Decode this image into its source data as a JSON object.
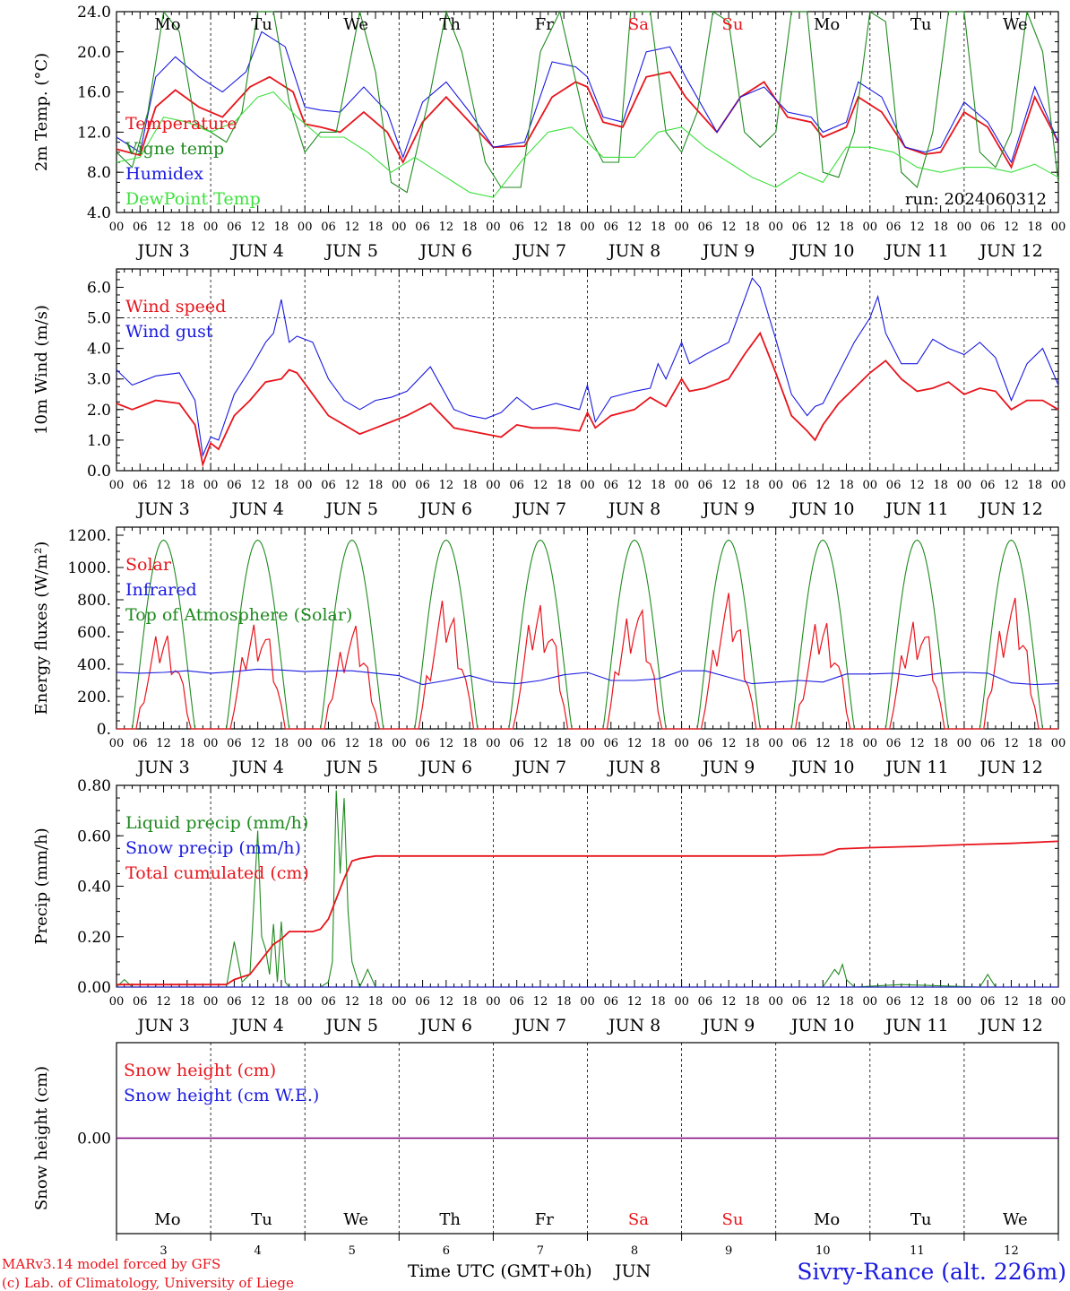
{
  "colors": {
    "red": "#e8141c",
    "green": "#1f8a1f",
    "blue": "#1a1ae0",
    "lightgreen": "#3de03d",
    "purple": "#800080",
    "black": "#000000"
  },
  "day_names": [
    "Mo",
    "Tu",
    "We",
    "Th",
    "Fr",
    "Sa",
    "Su",
    "Mo",
    "Tu",
    "We"
  ],
  "weekend_index": [
    5,
    6
  ],
  "date_labels": [
    "JUN  3",
    "JUN  4",
    "JUN  5",
    "JUN  6",
    "JUN  7",
    "JUN  8",
    "JUN  9",
    "JUN 10",
    "JUN 11",
    "JUN 12"
  ],
  "day_numbers": [
    "3",
    "4",
    "5",
    "6",
    "7",
    "8",
    "9",
    "10",
    "11",
    "12"
  ],
  "hour_labels": [
    "00",
    "06",
    "12",
    "18"
  ],
  "final_hour_label": "00",
  "run_label": "run: 2024060312",
  "footer": {
    "model": "MARv3.14 model forced by GFS",
    "copyright": "(c) Lab. of Climatology, University of Liege",
    "xlabel": "Time UTC (GMT+0h)",
    "month": "JUN",
    "station": "Sivry-Rance (alt. 226m)"
  },
  "chart_data": [
    {
      "type": "line",
      "ylabel": "2m Temp. (°C)",
      "ylim": [
        4,
        24
      ],
      "yticks": [
        4,
        8,
        12,
        16,
        20,
        24
      ],
      "ytick_labels": [
        "4.0",
        "8.0",
        "12.0",
        "16.0",
        "20.0",
        "24.0"
      ],
      "x_unit": "hours since 2024-06-03 00 UTC",
      "legend": [
        "Temperature",
        "Vigne temp",
        "Humidex",
        "DewPoint Temp"
      ],
      "series": [
        {
          "name": "Temperature",
          "color": "red",
          "x": [
            0,
            6,
            10,
            15,
            21,
            27,
            34,
            39,
            45,
            48,
            52,
            57,
            63,
            69,
            73,
            78,
            84,
            90,
            96,
            104,
            111,
            117,
            120,
            124,
            129,
            135,
            141,
            145,
            153,
            159,
            165,
            171,
            177,
            180,
            186,
            189,
            195,
            201,
            206,
            210,
            216,
            222,
            228,
            234,
            240
          ],
          "y": [
            10.3,
            9.7,
            14.5,
            16.2,
            14.5,
            13.5,
            16.5,
            17.5,
            16.0,
            12.8,
            12.5,
            12.0,
            14.0,
            12.0,
            9.0,
            13.0,
            15.5,
            13.0,
            10.5,
            10.6,
            15.5,
            17.0,
            16.5,
            13.0,
            12.5,
            17.5,
            18.0,
            15.5,
            12.0,
            15.5,
            17.0,
            13.5,
            13.0,
            11.5,
            12.5,
            15.5,
            14.0,
            10.5,
            9.8,
            10.0,
            14.0,
            12.5,
            8.5,
            15.5,
            11.0
          ]
        },
        {
          "name": "Humidex",
          "color": "blue",
          "x": [
            0,
            6,
            10,
            15,
            21,
            27,
            33,
            37,
            43,
            48,
            52,
            57,
            63,
            69,
            73,
            78,
            84,
            90,
            96,
            104,
            111,
            117,
            120,
            124,
            129,
            135,
            141,
            145,
            153,
            159,
            165,
            171,
            177,
            180,
            186,
            189,
            195,
            201,
            206,
            210,
            216,
            222,
            228,
            234,
            240
          ],
          "y": [
            11.5,
            10.0,
            17.5,
            19.5,
            17.5,
            16.0,
            18.0,
            22.0,
            20.5,
            14.5,
            14.2,
            14.0,
            16.5,
            14.0,
            9.5,
            15.0,
            17.0,
            14.0,
            10.5,
            11.0,
            19.0,
            18.5,
            17.5,
            13.5,
            13.0,
            20.0,
            20.5,
            17.5,
            12.0,
            15.5,
            16.5,
            14.0,
            13.5,
            12.0,
            13.0,
            17.0,
            15.5,
            10.5,
            10.0,
            10.5,
            15.0,
            13.0,
            9.0,
            16.5,
            11.0
          ]
        },
        {
          "name": "Vigne temp",
          "color": "green",
          "x": [
            0,
            4,
            8,
            12,
            16,
            20,
            24,
            28,
            32,
            36,
            40,
            44,
            48,
            52,
            56,
            62,
            66,
            70,
            74,
            80,
            84,
            88,
            94,
            98,
            103,
            108,
            113,
            120,
            124,
            128,
            131,
            136,
            140,
            144,
            148,
            152,
            156,
            160,
            164,
            168,
            172,
            176,
            180,
            184,
            188,
            192,
            196,
            200,
            204,
            208,
            212,
            216,
            220,
            224,
            228,
            232,
            236,
            240
          ],
          "y": [
            10.0,
            8.5,
            14.0,
            24.0,
            22.0,
            13.0,
            12.0,
            11.0,
            14.0,
            24.0,
            24.0,
            15.0,
            10.0,
            12.0,
            12.0,
            24.0,
            18.0,
            7.0,
            6.0,
            16.0,
            24.0,
            20.0,
            9.0,
            6.5,
            6.5,
            20.0,
            24.0,
            12.0,
            9.0,
            9.0,
            24.0,
            24.0,
            12.0,
            10.0,
            14.0,
            24.0,
            23.0,
            12.0,
            10.5,
            12.0,
            24.0,
            24.0,
            8.0,
            7.5,
            12.0,
            24.0,
            23.0,
            8.0,
            6.5,
            12.0,
            24.0,
            24.0,
            10.0,
            8.5,
            12.0,
            24.0,
            20.0,
            7.0
          ]
        },
        {
          "name": "DewPoint Temp",
          "color": "lightgreen",
          "x": [
            0,
            6,
            12,
            18,
            24,
            30,
            36,
            40,
            46,
            52,
            58,
            64,
            70,
            76,
            82,
            86,
            90,
            96,
            104,
            110,
            116,
            124,
            132,
            138,
            144,
            150,
            156,
            162,
            168,
            174,
            180,
            186,
            192,
            198,
            204,
            210,
            216,
            222,
            228,
            234,
            240
          ],
          "y": [
            9.0,
            9.5,
            13.5,
            13.0,
            12.0,
            13.0,
            15.5,
            16.0,
            13.5,
            11.5,
            11.5,
            10.0,
            8.0,
            9.5,
            8.0,
            7.0,
            6.0,
            5.5,
            9.5,
            12.0,
            12.5,
            9.5,
            9.5,
            12.0,
            12.5,
            10.5,
            9.0,
            7.5,
            6.5,
            8.0,
            7.0,
            10.5,
            10.5,
            10.0,
            8.5,
            8.0,
            8.5,
            8.5,
            8.0,
            8.8,
            7.5
          ]
        }
      ]
    },
    {
      "type": "line",
      "ylabel": "10m Wind (m/s)",
      "ylim": [
        0,
        6.6
      ],
      "yticks": [
        0,
        1,
        2,
        3,
        4,
        5,
        6
      ],
      "ytick_labels": [
        "0.0",
        "1.0",
        "2.0",
        "3.0",
        "4.0",
        "5.0",
        "6.0"
      ],
      "reference_line": 5,
      "x_unit": "hours since 2024-06-03 00 UTC",
      "legend": [
        "Wind speed",
        "Wind gust"
      ],
      "series": [
        {
          "name": "Wind speed",
          "color": "red",
          "x": [
            0,
            4,
            10,
            16,
            20,
            22,
            24,
            26,
            30,
            34,
            38,
            42,
            44,
            46,
            50,
            54,
            58,
            62,
            66,
            70,
            74,
            80,
            86,
            90,
            94,
            98,
            102,
            106,
            112,
            118,
            120,
            122,
            126,
            132,
            136,
            140,
            144,
            146,
            150,
            156,
            160,
            164,
            168,
            172,
            176,
            178,
            180,
            184,
            188,
            192,
            196,
            200,
            204,
            208,
            212,
            216,
            220,
            224,
            228,
            232,
            236,
            240
          ],
          "y": [
            2.2,
            2.0,
            2.3,
            2.2,
            1.5,
            0.2,
            0.9,
            0.7,
            1.8,
            2.3,
            2.9,
            3.0,
            3.3,
            3.2,
            2.5,
            1.8,
            1.5,
            1.2,
            1.4,
            1.6,
            1.8,
            2.2,
            1.4,
            1.3,
            1.2,
            1.1,
            1.5,
            1.4,
            1.4,
            1.3,
            1.9,
            1.4,
            1.8,
            2.0,
            2.4,
            2.1,
            3.0,
            2.6,
            2.7,
            3.0,
            3.8,
            4.5,
            3.2,
            1.8,
            1.3,
            1.0,
            1.5,
            2.2,
            2.7,
            3.2,
            3.6,
            3.0,
            2.6,
            2.7,
            2.9,
            2.5,
            2.7,
            2.6,
            2.0,
            2.3,
            2.3,
            2.0
          ]
        },
        {
          "name": "Wind gust",
          "color": "blue",
          "x": [
            0,
            4,
            10,
            16,
            20,
            22,
            24,
            26,
            30,
            34,
            38,
            40,
            42,
            44,
            46,
            50,
            54,
            58,
            62,
            66,
            70,
            74,
            80,
            86,
            90,
            94,
            98,
            102,
            106,
            112,
            118,
            120,
            122,
            126,
            132,
            136,
            138,
            140,
            144,
            146,
            150,
            156,
            160,
            162,
            164,
            168,
            172,
            176,
            178,
            180,
            184,
            188,
            192,
            194,
            196,
            200,
            204,
            208,
            212,
            216,
            220,
            224,
            228,
            232,
            236,
            240
          ],
          "y": [
            3.3,
            2.8,
            3.1,
            3.2,
            2.3,
            0.5,
            1.1,
            1.0,
            2.5,
            3.3,
            4.2,
            4.5,
            5.6,
            4.2,
            4.4,
            4.2,
            3.0,
            2.3,
            2.0,
            2.3,
            2.4,
            2.6,
            3.4,
            2.0,
            1.8,
            1.7,
            1.9,
            2.4,
            2.0,
            2.2,
            2.0,
            2.8,
            1.6,
            2.4,
            2.6,
            2.7,
            3.5,
            3.0,
            4.2,
            3.5,
            3.8,
            4.2,
            5.6,
            6.3,
            6.0,
            4.3,
            2.5,
            1.8,
            2.1,
            2.2,
            3.2,
            4.2,
            5.0,
            5.7,
            4.5,
            3.5,
            3.5,
            4.3,
            4.0,
            3.8,
            4.2,
            3.7,
            2.3,
            3.5,
            4.0,
            2.8
          ]
        }
      ]
    },
    {
      "type": "line",
      "ylabel": "Energy fluxes (W/m²)",
      "ylim": [
        0,
        1250
      ],
      "yticks": [
        0,
        200,
        400,
        600,
        800,
        1000,
        1200
      ],
      "ytick_labels": [
        "0.",
        "200.",
        "400.",
        "600.",
        "800.",
        "1000.",
        "1200."
      ],
      "x_unit": "hours since 2024-06-03 00 UTC",
      "legend": [
        "Solar",
        "Infrared",
        "Top of Atmosphere (Solar)"
      ],
      "toa_peak": 1170,
      "solar_peaks": [
        680,
        760,
        700,
        870,
        880,
        870,
        900,
        770,
        780,
        890
      ],
      "series": [
        {
          "name": "Infrared",
          "color": "blue",
          "x": [
            0,
            6,
            12,
            18,
            24,
            30,
            36,
            42,
            48,
            54,
            60,
            66,
            72,
            78,
            84,
            90,
            96,
            102,
            108,
            114,
            120,
            126,
            132,
            138,
            144,
            150,
            156,
            162,
            168,
            174,
            180,
            186,
            192,
            198,
            204,
            210,
            216,
            222,
            228,
            234,
            240
          ],
          "y": [
            350,
            345,
            350,
            360,
            345,
            355,
            370,
            365,
            355,
            360,
            360,
            345,
            330,
            275,
            300,
            330,
            290,
            280,
            300,
            335,
            350,
            300,
            300,
            310,
            360,
            360,
            320,
            280,
            290,
            300,
            290,
            340,
            340,
            345,
            325,
            345,
            350,
            345,
            285,
            275,
            280
          ]
        }
      ]
    },
    {
      "type": "line",
      "ylabel": "Precip (mm/h)",
      "ylim": [
        0,
        0.8
      ],
      "yticks": [
        0,
        0.2,
        0.4,
        0.6,
        0.8
      ],
      "ytick_labels": [
        "0.00",
        "0.20",
        "0.40",
        "0.60",
        "0.80"
      ],
      "x_unit": "hours since 2024-06-03 00 UTC",
      "legend": [
        "Liquid precip (mm/h)",
        "Snow precip (mm/h)",
        "Total cumulated (cm)"
      ],
      "series": [
        {
          "name": "Liquid precip (mm/h)",
          "color": "green",
          "x": [
            0,
            2,
            4,
            6,
            8,
            28,
            30,
            32,
            34,
            36,
            37,
            38,
            39,
            40,
            41,
            42,
            43,
            44,
            46,
            48,
            50,
            52,
            54,
            55,
            56,
            57,
            58,
            59,
            60,
            61,
            62,
            64,
            66,
            68,
            70,
            72,
            180,
            183,
            184,
            185,
            186,
            188,
            200,
            220,
            222,
            224,
            240
          ],
          "y": [
            0,
            0.03,
            0,
            0,
            0,
            0,
            0.18,
            0.02,
            0.05,
            0.62,
            0.2,
            0.15,
            0.05,
            0.25,
            0.02,
            0.26,
            0.02,
            0,
            0,
            0,
            0,
            0,
            0.02,
            0.1,
            0.78,
            0.45,
            0.75,
            0.3,
            0.1,
            0.05,
            0,
            0.07,
            0,
            0,
            0,
            0,
            0,
            0.07,
            0.05,
            0.09,
            0.03,
            0,
            0.01,
            0,
            0.05,
            0,
            0
          ]
        },
        {
          "name": "Total cumulated (cm)",
          "color": "red",
          "x": [
            0,
            28,
            30,
            34,
            36,
            38,
            40,
            42,
            44,
            50,
            52,
            54,
            56,
            58,
            60,
            62,
            66,
            72,
            120,
            168,
            180,
            184,
            192,
            204,
            216,
            228,
            240
          ],
          "y": [
            0.01,
            0.01,
            0.03,
            0.05,
            0.09,
            0.13,
            0.17,
            0.19,
            0.22,
            0.22,
            0.23,
            0.27,
            0.35,
            0.43,
            0.5,
            0.51,
            0.52,
            0.52,
            0.52,
            0.52,
            0.525,
            0.548,
            0.553,
            0.558,
            0.565,
            0.57,
            0.578
          ]
        },
        {
          "name": "Snow precip (mm/h)",
          "color": "blue",
          "x": [
            0,
            240
          ],
          "y": [
            0,
            0
          ]
        }
      ]
    },
    {
      "type": "line",
      "ylabel": "Snow height (cm)",
      "yticks": [
        0
      ],
      "ytick_labels": [
        "0.00"
      ],
      "x_unit": "hours since 2024-06-03 00 UTC",
      "legend": [
        "Snow height (cm)",
        "Snow height (cm W.E.)"
      ],
      "series": [
        {
          "name": "Snow height (cm)",
          "color": "purple",
          "x": [
            0,
            240
          ],
          "y": [
            0,
            0
          ]
        }
      ]
    }
  ]
}
